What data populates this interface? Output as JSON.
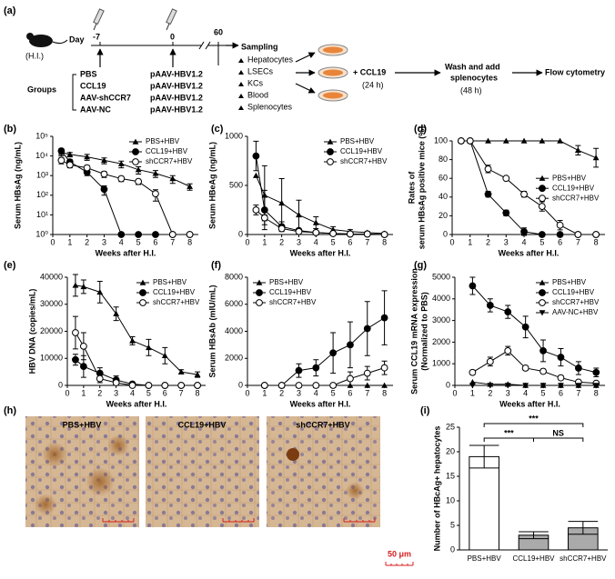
{
  "diagram": {
    "label": "(a)",
    "mouse": "(H.I.)",
    "day_label": "Day",
    "days": [
      "-7",
      "0",
      "60"
    ],
    "groups_label": "Groups",
    "groups": [
      "PBS",
      "CCL19",
      "AAV-shCCR7",
      "AAV-NC"
    ],
    "plasmids": [
      "pAAV-HBV1.2",
      "pAAV-HBV1.2",
      "pAAV-HBV1.2",
      "pAAV-HBV1.2"
    ],
    "sampling": "Sampling",
    "samples": [
      "Hepatocytes",
      "LSECs",
      "KCs",
      "Blood",
      "Splenocytes"
    ],
    "stimulus": "+ CCL19",
    "stimulus_time": "(24 h)",
    "wash": [
      "Wash and add",
      "splenocytes"
    ],
    "wash_time": "(48 h)",
    "readout": "Flow cytometry"
  },
  "chart_data": [
    {
      "type": "line",
      "label": "(b)",
      "xlabel": "Weeks after H.I.",
      "ylabel": "Serum HBsAg (ng/mL)",
      "log": true,
      "x": [
        0.5,
        1,
        2,
        3,
        4,
        5,
        6,
        7,
        8
      ],
      "xlim": [
        0,
        8.5
      ],
      "xticks": [
        0,
        1,
        2,
        3,
        4,
        5,
        6,
        7,
        8
      ],
      "ylim": [
        1,
        100000
      ],
      "yticks": [
        {
          "value": 1,
          "label": "10⁰"
        },
        {
          "value": 10,
          "label": "10¹"
        },
        {
          "value": 100,
          "label": "10²"
        },
        {
          "value": 1000,
          "label": "10³"
        },
        {
          "value": 10000,
          "label": "10⁴"
        },
        {
          "value": 100000,
          "label": "10⁵"
        }
      ],
      "legend": "upper right",
      "series": [
        {
          "name": "PBS+HBV",
          "marker": "triangle",
          "color": "#000000",
          "values": [
            15000,
            12000,
            9000,
            6000,
            4000,
            2000,
            1300,
            700,
            280
          ],
          "errors": [
            5000,
            3000,
            3000,
            2000,
            1500,
            800,
            500,
            300,
            100
          ]
        },
        {
          "name": "CCL19+HBV",
          "marker": "circle",
          "color": "#000000",
          "values": [
            18000,
            5000,
            1500,
            200,
            1,
            1,
            1,
            1,
            1
          ],
          "errors": [
            6000,
            1500,
            500,
            100,
            0,
            0,
            0,
            0,
            0
          ]
        },
        {
          "name": "shCCR7+HBV",
          "marker": "circle-open",
          "color": "#000000",
          "values": [
            6000,
            3500,
            2500,
            1200,
            700,
            500,
            120,
            1,
            1
          ],
          "errors": [
            2000,
            1000,
            800,
            400,
            200,
            150,
            70,
            0,
            0
          ]
        }
      ]
    },
    {
      "type": "line",
      "label": "(c)",
      "xlabel": "Weeks after H.I.",
      "ylabel": "Serum HBeAg (ng/mL)",
      "x": [
        0.5,
        1,
        2,
        3,
        4,
        5,
        6,
        7,
        8
      ],
      "xlim": [
        0,
        8.5
      ],
      "xticks": [
        0,
        1,
        2,
        3,
        4,
        5,
        6,
        7,
        8
      ],
      "ylim": [
        0,
        1000
      ],
      "yticks": [
        0,
        500,
        1000
      ],
      "legend": "upper right",
      "series": [
        {
          "name": "PBS+HBV",
          "marker": "triangle",
          "color": "#000000",
          "values": [
            600,
            400,
            320,
            200,
            120,
            50,
            30,
            20,
            10
          ],
          "errors": [
            0,
            300,
            250,
            150,
            60,
            30,
            20,
            10,
            10
          ]
        },
        {
          "name": "CCL19+HBV",
          "marker": "circle",
          "color": "#000000",
          "values": [
            800,
            250,
            80,
            40,
            20,
            10,
            5,
            5,
            0
          ],
          "errors": [
            150,
            200,
            50,
            20,
            10,
            5,
            5,
            5,
            0
          ]
        },
        {
          "name": "shCCR7+HBV",
          "marker": "circle-open",
          "color": "#000000",
          "values": [
            250,
            170,
            60,
            30,
            20,
            10,
            5,
            5,
            0
          ],
          "errors": [
            50,
            30,
            20,
            10,
            10,
            5,
            5,
            5,
            0
          ]
        }
      ]
    },
    {
      "type": "line",
      "label": "(d)",
      "xlabel": "Weeks after H.I.",
      "ylabel": [
        "Rates of",
        "serum HBsAg positive mice (%)"
      ],
      "x": [
        0.5,
        1,
        2,
        3,
        4,
        5,
        6,
        7,
        8
      ],
      "xlim": [
        0,
        8.5
      ],
      "xticks": [
        0,
        1,
        2,
        3,
        4,
        5,
        6,
        7,
        8
      ],
      "ylim": [
        0,
        100
      ],
      "yticks": [
        0,
        20,
        40,
        60,
        80,
        100
      ],
      "legend": "center right",
      "series": [
        {
          "name": "PBS+HBV",
          "marker": "triangle",
          "color": "#000000",
          "values": [
            100,
            100,
            100,
            100,
            100,
            100,
            100,
            90,
            82
          ],
          "errors": [
            0,
            0,
            0,
            0,
            0,
            0,
            0,
            5,
            10
          ]
        },
        {
          "name": "CCL19+HBV",
          "marker": "circle",
          "color": "#000000",
          "values": [
            100,
            100,
            43,
            23,
            3,
            0,
            0,
            0,
            0
          ],
          "errors": [
            0,
            0,
            3,
            3,
            4,
            0,
            0,
            0,
            0
          ]
        },
        {
          "name": "shCCR7+HBV",
          "marker": "circle-open",
          "color": "#000000",
          "values": [
            100,
            100,
            70,
            60,
            43,
            30,
            10,
            0,
            0
          ],
          "errors": [
            0,
            0,
            4,
            0,
            3,
            5,
            5,
            0,
            0
          ]
        }
      ]
    },
    {
      "type": "line",
      "label": "(e)",
      "xlabel": "Weeks after H.I.",
      "ylabel": "HBV DNA (copies/mL)",
      "x": [
        0.5,
        1,
        2,
        3,
        4,
        5,
        6,
        7,
        8
      ],
      "xlim": [
        0,
        8.5
      ],
      "xticks": [
        0,
        1,
        2,
        3,
        4,
        5,
        6,
        7,
        8
      ],
      "ylim": [
        0,
        40000
      ],
      "yticks": [
        0,
        10000,
        20000,
        30000,
        40000
      ],
      "legend": "upper right",
      "series": [
        {
          "name": "PBS+HBV",
          "marker": "triangle",
          "color": "#000000",
          "values": [
            37000,
            36500,
            34500,
            26500,
            16500,
            14000,
            11000,
            5000,
            4000
          ],
          "errors": [
            4000,
            2500,
            4000,
            2500,
            1500,
            3000,
            3000,
            800,
            1000
          ]
        },
        {
          "name": "CCL19+HBV",
          "marker": "circle",
          "color": "#000000",
          "values": [
            9500,
            7000,
            4500,
            2000,
            500,
            0,
            0,
            0,
            0
          ],
          "errors": [
            2000,
            4000,
            2000,
            1500,
            500,
            0,
            0,
            0,
            0
          ]
        },
        {
          "name": "shCCR7+HBV",
          "marker": "circle-open",
          "color": "#000000",
          "values": [
            19500,
            14500,
            2500,
            1000,
            0,
            0,
            0,
            0,
            0
          ],
          "errors": [
            6000,
            5000,
            1500,
            1000,
            0,
            0,
            0,
            0,
            0
          ]
        }
      ]
    },
    {
      "type": "line",
      "label": "(f)",
      "xlabel": "Weeks after H.I.",
      "ylabel": "Serum HBsAb (mIU/mL)",
      "x": [
        1,
        2,
        3,
        4,
        5,
        6,
        7,
        8
      ],
      "xlim": [
        0,
        8.5
      ],
      "xticks": [
        0,
        1,
        2,
        3,
        4,
        5,
        6,
        7,
        8
      ],
      "ylim": [
        0,
        8000
      ],
      "yticks": [
        0,
        2000,
        4000,
        6000,
        8000
      ],
      "legend": "upper left",
      "series": [
        {
          "name": "PBS+HBV",
          "marker": "triangle",
          "color": "#000000",
          "values": [
            0,
            0,
            0,
            0,
            0,
            0,
            0,
            0
          ],
          "errors": [
            0,
            0,
            0,
            0,
            0,
            0,
            0,
            0
          ]
        },
        {
          "name": "CCL19+HBV",
          "marker": "circle",
          "color": "#000000",
          "values": [
            0,
            0,
            1100,
            1300,
            2400,
            3000,
            4200,
            5000
          ],
          "errors": [
            0,
            0,
            500,
            600,
            1500,
            1700,
            2000,
            2000
          ]
        },
        {
          "name": "shCCR7+HBV",
          "marker": "circle-open",
          "color": "#000000",
          "values": [
            0,
            0,
            0,
            0,
            0,
            500,
            900,
            1300
          ],
          "errors": [
            0,
            0,
            0,
            0,
            0,
            500,
            500,
            500
          ]
        }
      ]
    },
    {
      "type": "line",
      "label": "(g)",
      "xlabel": "Weeks after H.I.",
      "ylabel": [
        "Serum CCL19 mRNA expression",
        "(Normalized to PBS)"
      ],
      "x": [
        1,
        2,
        3,
        4,
        5,
        6,
        7,
        8
      ],
      "xlim": [
        0,
        8.5
      ],
      "xticks": [
        0,
        1,
        2,
        3,
        4,
        5,
        6,
        7,
        8
      ],
      "ylim": [
        0,
        5000
      ],
      "yticks": [
        0,
        1000,
        2000,
        3000,
        4000,
        5000
      ],
      "legend": "upper right",
      "series": [
        {
          "name": "PBS+HBV",
          "marker": "triangle",
          "color": "#000000",
          "values": [
            150,
            50,
            50,
            0,
            0,
            0,
            0,
            0
          ],
          "errors": [
            0,
            0,
            0,
            0,
            0,
            0,
            0,
            0
          ]
        },
        {
          "name": "CCL19+HBV",
          "marker": "circle",
          "color": "#000000",
          "values": [
            4600,
            3700,
            3400,
            2700,
            1600,
            1300,
            800,
            600
          ],
          "errors": [
            400,
            300,
            300,
            500,
            500,
            400,
            300,
            200
          ]
        },
        {
          "name": "shCCR7+HBV",
          "marker": "circle-open",
          "color": "#000000",
          "values": [
            600,
            1100,
            1600,
            800,
            650,
            350,
            150,
            100
          ],
          "errors": [
            100,
            200,
            200,
            100,
            100,
            100,
            0,
            0
          ]
        },
        {
          "name": "AAV-NC+HBV",
          "marker": "triangle-down",
          "color": "#000000",
          "values": [
            0,
            0,
            0,
            0,
            0,
            0,
            0,
            0
          ],
          "errors": [
            0,
            0,
            0,
            0,
            0,
            0,
            0,
            0
          ]
        }
      ]
    },
    {
      "type": "bar",
      "label": "(i)",
      "ylabel": "Number of HBcAg+ hepatocytes",
      "categories": [
        "PBS+HBV",
        "CCL19+HBV",
        "shCCR7+HBV"
      ],
      "values": [
        19,
        3,
        4.5
      ],
      "errors": [
        2.3,
        0.7,
        1.3
      ],
      "colors": [
        "#ffffff",
        "#aaaaaa",
        "#aaaaaa"
      ],
      "ylim": [
        0,
        25
      ],
      "yticks": [
        0,
        5,
        10,
        15,
        20,
        25
      ],
      "annotations": [
        "***",
        "***",
        "NS"
      ]
    }
  ],
  "micrographs": {
    "label": "(h)",
    "panels": [
      "PBS+HBV",
      "CCL19+HBV",
      "shCCR7+HBV"
    ],
    "scale": "50 μm"
  }
}
